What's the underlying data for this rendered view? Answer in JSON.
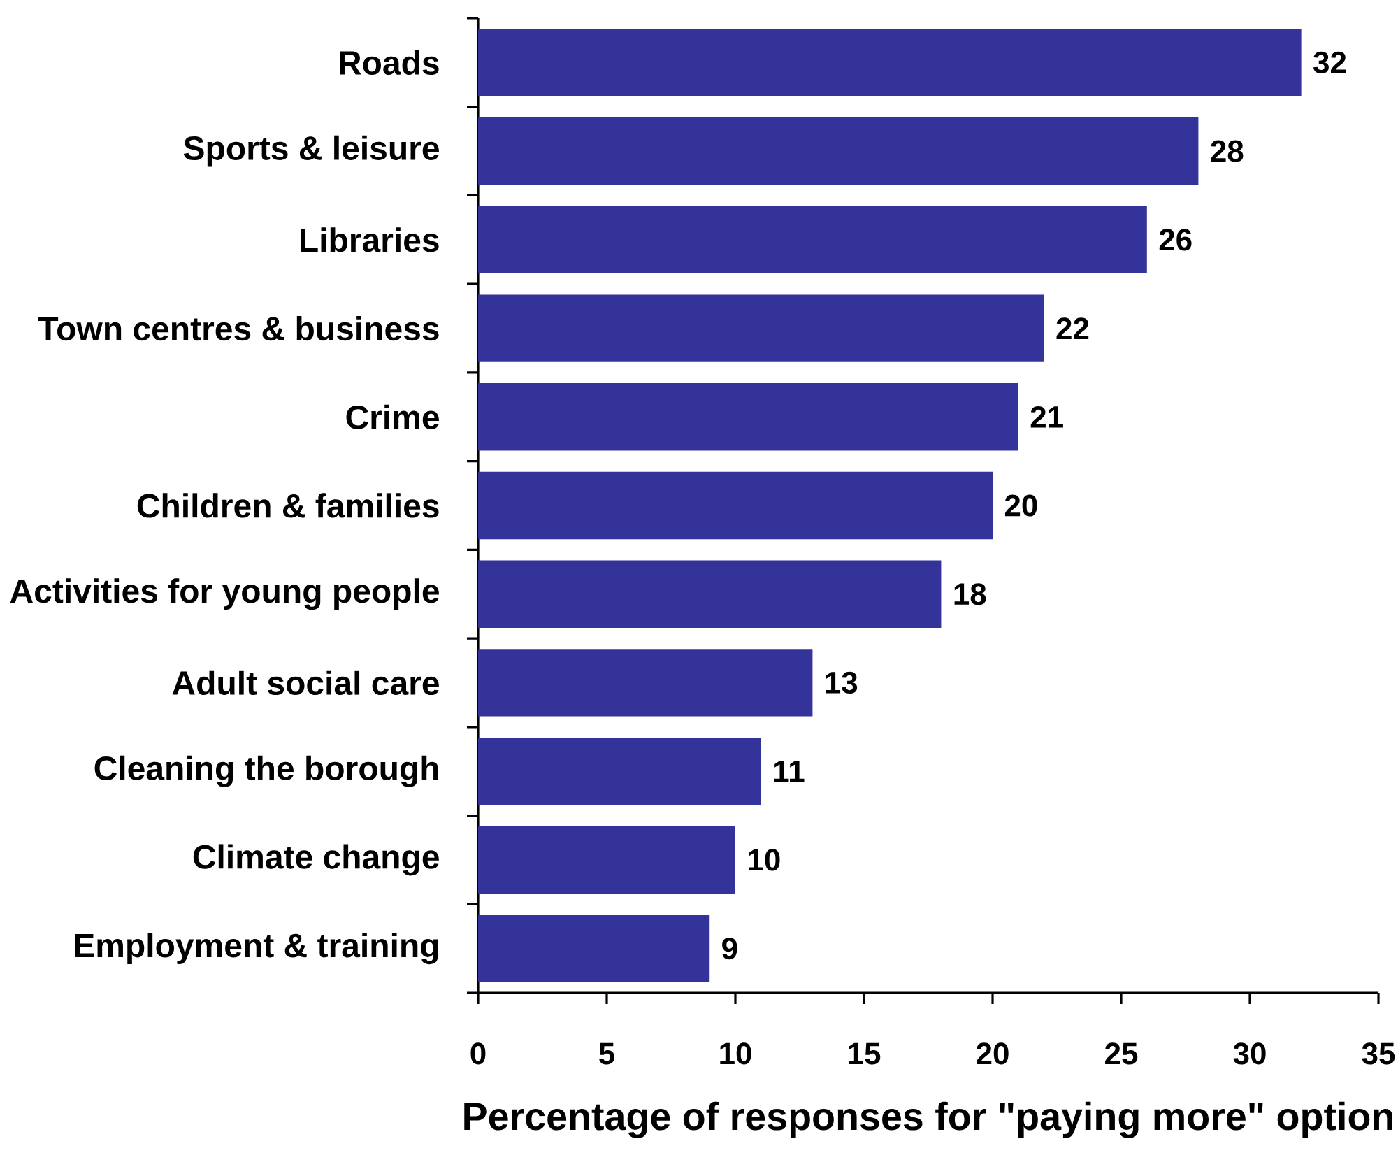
{
  "chart_data": {
    "type": "bar",
    "orientation": "horizontal",
    "categories": [
      "Roads",
      "Sports & leisure",
      "Libraries",
      "Town centres & business",
      "Crime",
      "Children & families",
      "Activities for young people",
      "Adult social care",
      "Cleaning the borough",
      "Climate change",
      "Employment & training"
    ],
    "values": [
      32,
      28,
      26,
      22,
      21,
      20,
      18,
      13,
      11,
      10,
      9
    ],
    "color": "#333399",
    "xlabel": "Percentage of responses for \"paying more\" option",
    "xlim": [
      0,
      35
    ],
    "xticks": [
      0,
      5,
      10,
      15,
      20,
      25,
      30,
      35
    ],
    "data_labels": true
  }
}
